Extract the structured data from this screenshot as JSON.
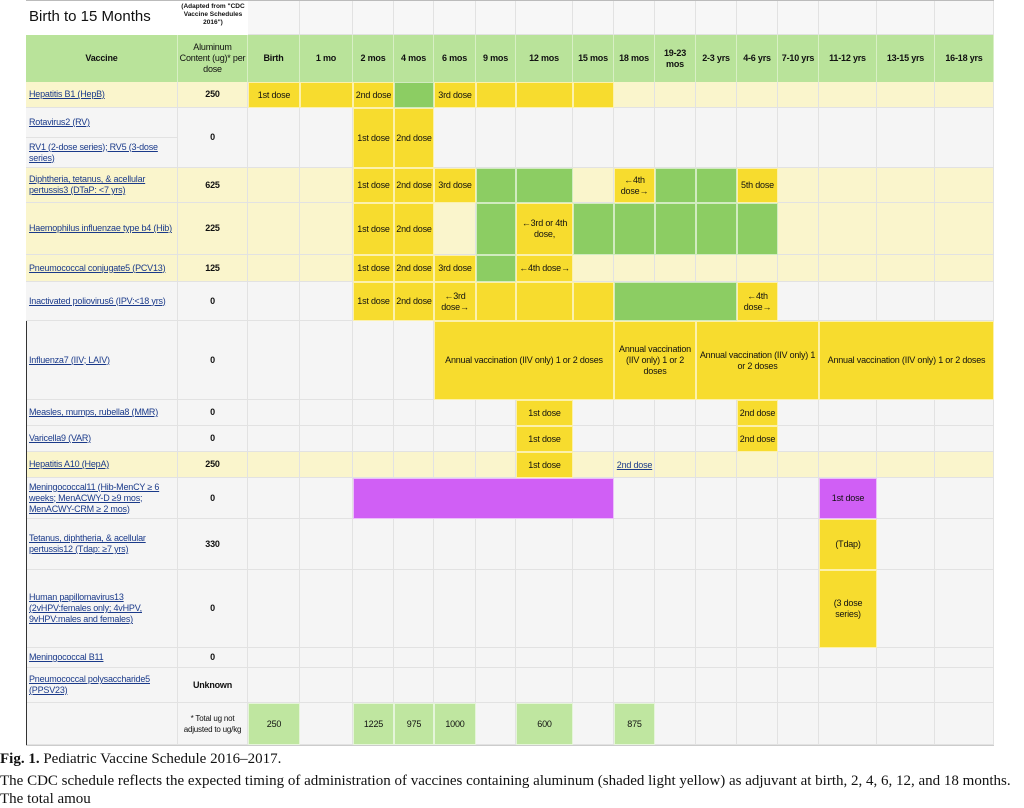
{
  "title": "Birth to 15 Months",
  "adapted_note": "(Adapted from \"CDC Vaccine Schedules 2016\")",
  "headers": {
    "vaccine": "Vaccine",
    "aluminum": "Aluminum Content (ug)* per dose",
    "ages": [
      "Birth",
      "1 mo",
      "2 mos",
      "4 mos",
      "6 mos",
      "9 mos",
      "12 mos",
      "15 mos",
      "18 mos",
      "19-23 mos",
      "2-3 yrs",
      "4-6 yrs",
      "7-10 yrs",
      "11-12 yrs",
      "13-15 yrs",
      "16-18 yrs"
    ]
  },
  "colors": {
    "dose_yellow": "#f7dc2e",
    "catchup_green": "#8ccd63",
    "header_green": "#b9e39a",
    "aluminum_row": "#faf5cc",
    "meningococcal_purple": "#d05ff5",
    "plain_row": "#f5f5f5"
  },
  "rows": [
    {
      "name": "Hepatitis B1 (HepB)",
      "aluminum": "250",
      "aluminum_row": true,
      "cells": [
        {
          "col": 0,
          "span": 1,
          "fill": "yellow",
          "text": "1st dose"
        },
        {
          "col": 1,
          "span": 1,
          "fill": "yellow",
          "text": ""
        },
        {
          "col": 2,
          "span": 1,
          "fill": "yellow",
          "text": "2nd dose"
        },
        {
          "col": 3,
          "span": 1,
          "fill": "green",
          "text": ""
        },
        {
          "col": 4,
          "span": 1,
          "fill": "yellow",
          "text": "3rd dose"
        },
        {
          "col": 5,
          "span": 1,
          "fill": "yellow",
          "text": ""
        },
        {
          "col": 6,
          "span": 1,
          "fill": "yellow",
          "text": ""
        },
        {
          "col": 7,
          "span": 1,
          "fill": "yellow",
          "text": ""
        }
      ]
    },
    {
      "name": "Rotavirus2 (RV)",
      "name2": "RV1 (2-dose series); RV5 (3-dose series)",
      "aluminum": "0",
      "aluminum_row": false,
      "cells": [
        {
          "col": 2,
          "span": 1,
          "fill": "yellow",
          "text": "1st dose"
        },
        {
          "col": 3,
          "span": 1,
          "fill": "yellow",
          "text": "2nd dose"
        }
      ]
    },
    {
      "name": "Diphtheria, tetanus, & acellular pertussis3 (DTaP: <7 yrs)",
      "aluminum": "625",
      "aluminum_row": true,
      "cells": [
        {
          "col": 2,
          "span": 1,
          "fill": "yellow",
          "text": "1st dose"
        },
        {
          "col": 3,
          "span": 1,
          "fill": "yellow",
          "text": "2nd dose"
        },
        {
          "col": 4,
          "span": 1,
          "fill": "yellow",
          "text": "3rd dose"
        },
        {
          "col": 5,
          "span": 1,
          "fill": "green",
          "text": ""
        },
        {
          "col": 6,
          "span": 1,
          "fill": "green",
          "text": ""
        },
        {
          "col": 8,
          "span": 1,
          "fill": "yellow",
          "text": "←4th dose→"
        },
        {
          "col": 9,
          "span": 1,
          "fill": "green",
          "text": ""
        },
        {
          "col": 10,
          "span": 1,
          "fill": "green",
          "text": ""
        },
        {
          "col": 11,
          "span": 1,
          "fill": "yellow",
          "text": "5th dose"
        }
      ]
    },
    {
      "name": "Haemophilus influenzae type b4 (Hib)",
      "aluminum": "225",
      "aluminum_row": true,
      "cells": [
        {
          "col": 2,
          "span": 1,
          "fill": "yellow",
          "text": "1st dose"
        },
        {
          "col": 3,
          "span": 1,
          "fill": "yellow",
          "text": "2nd dose"
        },
        {
          "col": 5,
          "span": 1,
          "fill": "green",
          "text": ""
        },
        {
          "col": 6,
          "span": 1,
          "fill": "yellow",
          "text": "←3rd or 4th dose,"
        },
        {
          "col": 7,
          "span": 1,
          "fill": "green",
          "text": ""
        },
        {
          "col": 8,
          "span": 1,
          "fill": "green",
          "text": ""
        },
        {
          "col": 9,
          "span": 1,
          "fill": "green",
          "text": ""
        },
        {
          "col": 10,
          "span": 1,
          "fill": "green",
          "text": ""
        },
        {
          "col": 11,
          "span": 1,
          "fill": "green",
          "text": ""
        }
      ]
    },
    {
      "name": "Pneumococcal conjugate5 (PCV13)",
      "aluminum": "125",
      "aluminum_row": true,
      "cells": [
        {
          "col": 2,
          "span": 1,
          "fill": "yellow",
          "text": "1st dose"
        },
        {
          "col": 3,
          "span": 1,
          "fill": "yellow",
          "text": "2nd dose"
        },
        {
          "col": 4,
          "span": 1,
          "fill": "yellow",
          "text": "3rd dose"
        },
        {
          "col": 5,
          "span": 1,
          "fill": "green",
          "text": ""
        },
        {
          "col": 6,
          "span": 1,
          "fill": "yellow",
          "text": "←4th dose→"
        }
      ]
    },
    {
      "name": "Inactivated poliovirus6 (IPV:<18 yrs)",
      "aluminum": "0",
      "aluminum_row": false,
      "cells": [
        {
          "col": 2,
          "span": 1,
          "fill": "yellow",
          "text": "1st dose"
        },
        {
          "col": 3,
          "span": 1,
          "fill": "yellow",
          "text": "2nd dose"
        },
        {
          "col": 4,
          "span": 1,
          "fill": "yellow",
          "text": "←3rd dose→"
        },
        {
          "col": 5,
          "span": 1,
          "fill": "yellow",
          "text": ""
        },
        {
          "col": 6,
          "span": 1,
          "fill": "yellow",
          "text": ""
        },
        {
          "col": 7,
          "span": 1,
          "fill": "yellow",
          "text": ""
        },
        {
          "col": 8,
          "span": 3,
          "fill": "green",
          "text": ""
        },
        {
          "col": 11,
          "span": 1,
          "fill": "yellow",
          "text": "←4th dose→"
        }
      ]
    },
    {
      "name": "Influenza7 (IIV; LAIV)",
      "aluminum": "0",
      "aluminum_row": false,
      "cells": [
        {
          "col": 4,
          "span": 4,
          "fill": "yellow",
          "text": "Annual vaccination (IIV only) 1 or 2 doses"
        },
        {
          "col": 8,
          "span": 2,
          "fill": "yellow",
          "text": "Annual vaccination (IIV only) 1 or 2 doses"
        },
        {
          "col": 10,
          "span": 3,
          "fill": "yellow",
          "text": "Annual vaccination (IIV only) 1 or 2 doses"
        },
        {
          "col": 13,
          "span": 3,
          "fill": "yellow",
          "text": "Annual vaccination (IIV only) 1 or 2 doses"
        }
      ]
    },
    {
      "name": "Measles, mumps, rubella8 (MMR)",
      "aluminum": "0",
      "aluminum_row": false,
      "cells": [
        {
          "col": 6,
          "span": 1,
          "fill": "yellow",
          "text": "1st dose"
        },
        {
          "col": 11,
          "span": 1,
          "fill": "yellow",
          "text": "2nd dose"
        }
      ]
    },
    {
      "name": "Varicella9 (VAR)",
      "aluminum": "0",
      "aluminum_row": false,
      "cells": [
        {
          "col": 6,
          "span": 1,
          "fill": "yellow",
          "text": "1st dose"
        },
        {
          "col": 11,
          "span": 1,
          "fill": "yellow",
          "text": "2nd dose"
        }
      ]
    },
    {
      "name": "Hepatitis A10 (HepA)",
      "aluminum": "250",
      "aluminum_row": true,
      "cells": [
        {
          "col": 6,
          "span": 1,
          "fill": "yellow",
          "text": "1st dose"
        },
        {
          "col": 8,
          "span": 1,
          "fill": "link",
          "text": "2nd dose"
        }
      ]
    },
    {
      "name": "Meningococcal11 (Hib-MenCY ≥ 6 weeks; MenACWY-D ≥9 mos; MenACWY-CRM ≥ 2 mos)",
      "aluminum": "0",
      "aluminum_row": false,
      "cells": [
        {
          "col": 2,
          "span": 6,
          "fill": "purple",
          "text": ""
        },
        {
          "col": 13,
          "span": 1,
          "fill": "purple",
          "text": "1st dose"
        }
      ]
    },
    {
      "name": "Tetanus, diphtheria, & acellular pertussis12 (Tdap: ≥7 yrs)",
      "aluminum": "330",
      "aluminum_row": false,
      "cells": [
        {
          "col": 13,
          "span": 1,
          "fill": "yellow",
          "text": "(Tdap)"
        }
      ]
    },
    {
      "name": "Human papillomavirus13 (2vHPV:females only; 4vHPV, 9vHPV:males and females)",
      "aluminum": "0",
      "aluminum_row": false,
      "cells": [
        {
          "col": 13,
          "span": 1,
          "fill": "yellow",
          "text": "(3 dose series)"
        }
      ]
    },
    {
      "name": "Meningococcal B11",
      "aluminum": "0",
      "aluminum_row": false,
      "cells": []
    },
    {
      "name": "Pneumococcal polysaccharide5 (PPSV23)",
      "aluminum": "Unknown",
      "aluminum_row": false,
      "cells": []
    }
  ],
  "totals": {
    "note": "* Total ug not adjusted to ug/kg",
    "cells": [
      {
        "col": 0,
        "text": "250"
      },
      {
        "col": 2,
        "text": "1225"
      },
      {
        "col": 3,
        "text": "975"
      },
      {
        "col": 4,
        "text": "1000"
      },
      {
        "col": 6,
        "text": "600"
      },
      {
        "col": 8,
        "text": "875"
      }
    ]
  },
  "caption": {
    "label": "Fig. 1.",
    "title": "Pediatric Vaccine Schedule 2016–2017.",
    "text": "The CDC schedule reflects the expected timing of administration of vaccines containing aluminum (shaded light yellow) as adjuvant at birth, 2, 4, 6, 12, and 18 months. The total amou"
  }
}
